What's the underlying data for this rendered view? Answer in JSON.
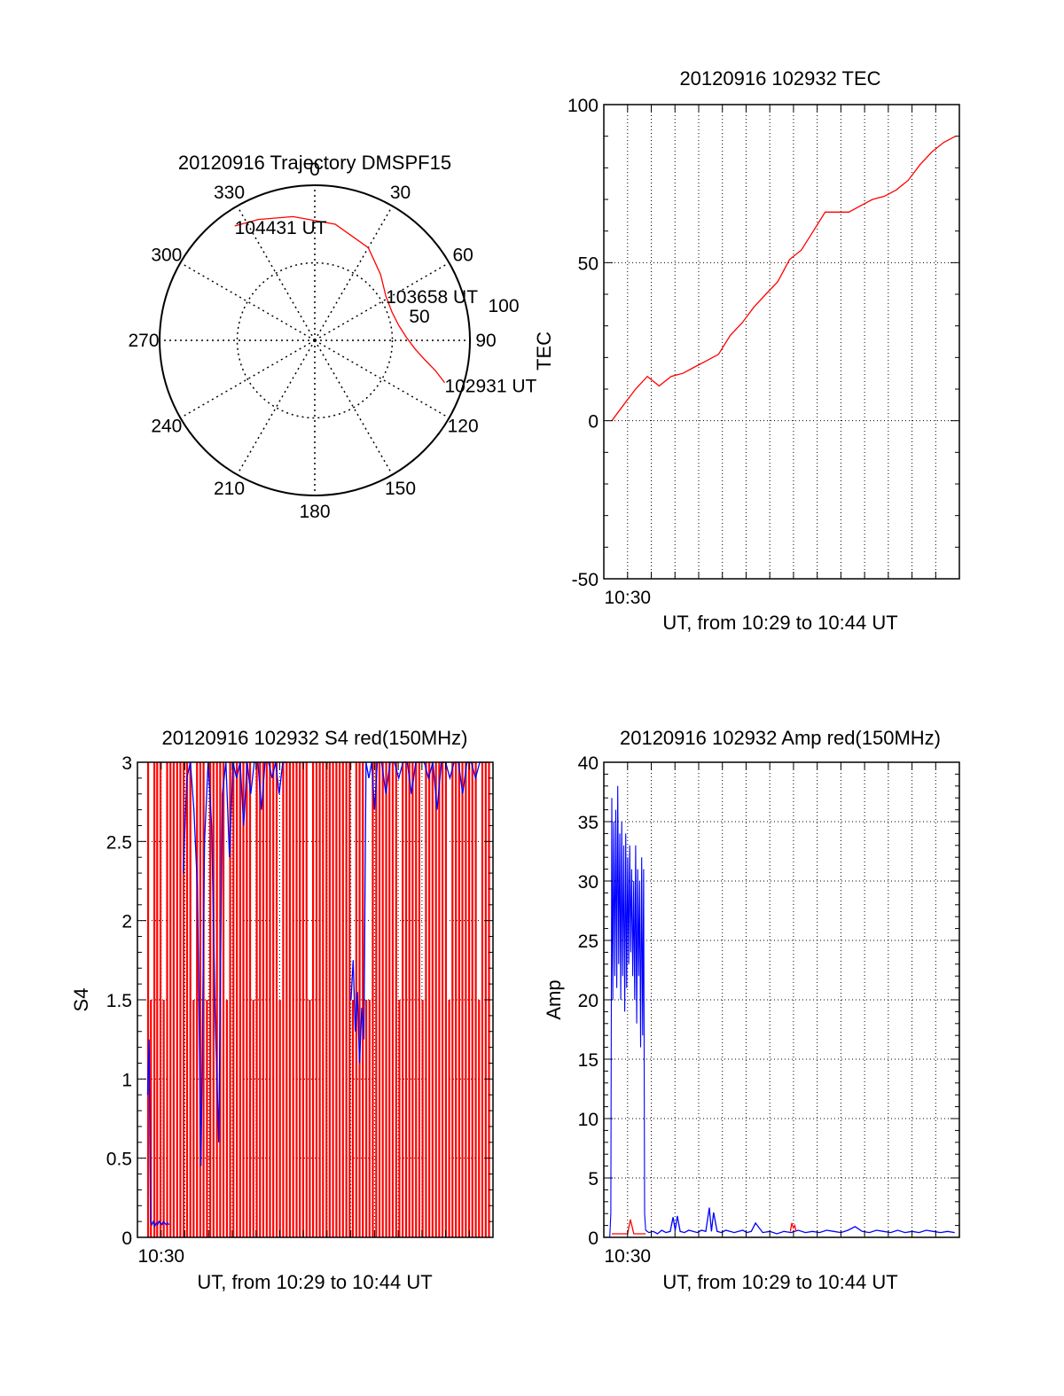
{
  "colors": {
    "red": "#ff0000",
    "blue": "#0000ff",
    "axis": "#000000",
    "grid": "#000000",
    "background": "#ffffff"
  },
  "chart_data": [
    {
      "id": "trajectory",
      "type": "polar",
      "title": "20120916 Trajectory DMSPF15",
      "angle_labels": [
        "0",
        "30",
        "60",
        "90",
        "120",
        "150",
        "180",
        "210",
        "240",
        "270",
        "300",
        "330"
      ],
      "radius_labels": [
        "50",
        "100"
      ],
      "radius_range": [
        0,
        100
      ],
      "grid": true,
      "track": {
        "color": "red",
        "points": [
          {
            "azimuth": 108,
            "radius": 88
          },
          {
            "azimuth": 104,
            "radius": 80
          },
          {
            "azimuth": 100,
            "radius": 72
          },
          {
            "azimuth": 95,
            "radius": 65
          },
          {
            "azimuth": 88,
            "radius": 59
          },
          {
            "azimuth": 80,
            "radius": 55
          },
          {
            "azimuth": 70,
            "radius": 53
          },
          {
            "azimuth": 58,
            "radius": 54
          },
          {
            "azimuth": 45,
            "radius": 60
          },
          {
            "azimuth": 30,
            "radius": 69
          },
          {
            "azimuth": 10,
            "radius": 76
          },
          {
            "azimuth": -10,
            "radius": 81
          },
          {
            "azimuth": -25,
            "radius": 86
          },
          {
            "azimuth": -35,
            "radius": 90
          }
        ]
      },
      "annotations": [
        {
          "text": "104431 UT",
          "azimuth": -35,
          "radius": 90
        },
        {
          "text": "103658 UT",
          "azimuth": 58,
          "radius": 54
        },
        {
          "text": "102931 UT",
          "azimuth": 108,
          "radius": 88
        }
      ]
    },
    {
      "id": "tec",
      "type": "line",
      "title": "20120916 102932 TEC",
      "xlabel": "UT, from 10:29 to 10:44 UT",
      "ylabel": "TEC",
      "xlim": [
        10.4833,
        10.7333
      ],
      "ylim": [
        -50,
        100
      ],
      "yticks": [
        -50,
        0,
        50,
        100
      ],
      "xticks": [
        {
          "value": 10.5,
          "label": "10:30"
        }
      ],
      "grid": true,
      "series": [
        {
          "color": "red",
          "x": [
            10.4889,
            10.4972,
            10.5056,
            10.5139,
            10.5222,
            10.5306,
            10.5389,
            10.5472,
            10.5556,
            10.5639,
            10.5722,
            10.5806,
            10.5889,
            10.5972,
            10.6056,
            10.6139,
            10.6222,
            10.6306,
            10.6389,
            10.6472,
            10.6556,
            10.6639,
            10.6722,
            10.6806,
            10.6889,
            10.6972,
            10.7056,
            10.7139,
            10.7222,
            10.7306
          ],
          "y": [
            0,
            5,
            10,
            14,
            11,
            14,
            15,
            17,
            19,
            21,
            27,
            31,
            36,
            40,
            44,
            51,
            54,
            60,
            66,
            66,
            66,
            68,
            70,
            71,
            73,
            76,
            81,
            85,
            88,
            90
          ]
        }
      ]
    },
    {
      "id": "s4",
      "type": "line",
      "title": "20120916 102932 S4 red(150MHz)",
      "xlabel": "UT, from 10:29 to 10:44 UT",
      "ylabel": "S4",
      "xlim": [
        10.4833,
        10.7333
      ],
      "ylim": [
        0,
        3
      ],
      "yticks": [
        0,
        0.5,
        1,
        1.5,
        2,
        2.5,
        3
      ],
      "ytick_labels": [
        "0",
        "0.5",
        "1",
        "1.5",
        "2",
        "2.5",
        "3"
      ],
      "xticks": [
        {
          "value": 10.5,
          "label": "10:30"
        }
      ],
      "grid": true,
      "series": [
        {
          "color": "red",
          "x": [
            10.4908,
            10.4928,
            10.4952,
            10.4972,
            10.4995,
            10.5018,
            10.5042,
            10.5065,
            10.5088,
            10.5112,
            10.5135,
            10.5158,
            10.5182,
            10.5205,
            10.5228,
            10.5252,
            10.5275,
            10.5298,
            10.5322,
            10.5345,
            10.5368,
            10.5392,
            10.5415,
            10.5438,
            10.5462,
            10.5485,
            10.5508,
            10.5532,
            10.5555,
            10.5578,
            10.5602,
            10.5625,
            10.5648,
            10.5672,
            10.5695,
            10.5718,
            10.5742,
            10.5765,
            10.5788,
            10.5812,
            10.5835,
            10.5858,
            10.5882,
            10.5905,
            10.5928,
            10.5952,
            10.5975,
            10.5998,
            10.6022,
            10.6045,
            10.6068,
            10.6092,
            10.6115,
            10.6138,
            10.6162,
            10.6185,
            10.6208,
            10.6232,
            10.6255,
            10.6278,
            10.6302,
            10.6325,
            10.6348,
            10.6372,
            10.6395,
            10.6418,
            10.6442,
            10.6465,
            10.6488,
            10.6512,
            10.6535,
            10.6558,
            10.6582,
            10.6605,
            10.6628,
            10.6652,
            10.6675,
            10.6698,
            10.6722,
            10.6745,
            10.6768,
            10.6792,
            10.6815,
            10.6838,
            10.6862,
            10.6885,
            10.6908,
            10.6932,
            10.6955,
            10.6978,
            10.7002,
            10.7025,
            10.7048,
            10.7072,
            10.7095,
            10.7118,
            10.7142,
            10.7165,
            10.7188,
            10.7212,
            10.7235,
            10.7258,
            10.7282,
            10.7305
          ],
          "y": [
            3,
            1.5,
            3,
            3,
            3,
            1.5,
            3,
            3,
            3,
            3,
            3,
            3,
            3,
            3,
            1.5,
            3,
            3,
            3,
            1.5,
            3,
            3,
            3,
            3,
            3,
            1.5,
            3,
            3,
            3,
            3,
            3,
            3,
            3,
            1.5,
            3,
            3,
            3,
            3,
            3,
            3,
            3,
            1.5,
            3,
            3,
            3,
            3,
            3,
            3,
            3,
            3,
            1.5,
            3,
            3,
            3,
            3,
            3,
            3,
            3,
            3,
            3,
            3,
            3,
            3,
            1.5,
            3,
            3,
            3,
            1.5,
            1.5,
            3,
            3,
            3,
            3,
            3,
            3,
            3,
            3,
            1.5,
            3,
            3,
            3,
            3,
            3,
            3,
            1.5,
            3,
            3,
            3,
            3,
            3,
            3,
            3,
            1.5,
            3,
            3,
            3,
            3,
            3,
            3,
            3,
            3,
            1.5,
            3,
            3,
            3
          ]
        },
        {
          "color": "blue",
          "x": [
            10.4905,
            10.4915,
            10.4925,
            10.4935,
            10.4945,
            10.4955,
            10.4965,
            10.4975,
            10.4985,
            10.4995,
            10.5005,
            10.5015,
            10.5025,
            10.5035,
            10.5045,
            10.5055
          ],
          "y": [
            0.9,
            1.25,
            0.1,
            0.08,
            0.1,
            0.07,
            0.09,
            0.08,
            0.1,
            0.09,
            0.08,
            0.1,
            0.09,
            0.08,
            0.09,
            0.08
          ]
        },
        {
          "color": "blue",
          "x": [
            10.5155,
            10.518,
            10.5205,
            10.523,
            10.5255,
            10.528,
            10.5305,
            10.533,
            10.5355,
            10.538,
            10.5405,
            10.543,
            10.5455,
            10.548,
            10.5505,
            10.553,
            10.5555,
            10.558,
            10.5605,
            10.563,
            10.5655,
            10.568,
            10.5705,
            10.573,
            10.5755,
            10.578,
            10.5805,
            10.583,
            10.5855,
            10.588
          ],
          "y": [
            2.3,
            2.9,
            3,
            2.7,
            2.2,
            0.45,
            2.5,
            3,
            2.6,
            1.4,
            0.6,
            2.8,
            3,
            2.4,
            3,
            2.9,
            3,
            2.6,
            3,
            2.8,
            3,
            3,
            2.7,
            3,
            3,
            2.9,
            3,
            2.8,
            3,
            3
          ]
        },
        {
          "color": "blue",
          "x": [
            10.6335,
            10.635,
            10.6365,
            10.638,
            10.6395,
            10.641,
            10.6425,
            10.644,
            10.646,
            10.648,
            10.65,
            10.652,
            10.655,
            10.658,
            10.661,
            10.664,
            10.667,
            10.67,
            10.673,
            10.676,
            10.679,
            10.682,
            10.685,
            10.688,
            10.691,
            10.694,
            10.697,
            10.7,
            10.703,
            10.706,
            10.709,
            10.712,
            10.715,
            10.718,
            10.721,
            10.724,
            10.727,
            10.73
          ],
          "y": [
            1.5,
            1.75,
            1.3,
            1.55,
            1.1,
            1.45,
            1.25,
            3,
            2.9,
            3,
            2.7,
            3,
            3,
            2.8,
            3,
            3,
            2.9,
            3,
            3,
            2.8,
            3,
            3,
            3,
            2.9,
            3,
            2.7,
            3,
            3,
            2.9,
            3,
            3,
            2.8,
            3,
            3,
            2.9,
            3,
            3,
            3
          ]
        }
      ]
    },
    {
      "id": "amp",
      "type": "line",
      "title": "20120916 102932 Amp red(150MHz)",
      "xlabel": "UT, from 10:29 to 10:44 UT",
      "ylabel": "Amp",
      "xlim": [
        10.4833,
        10.7333
      ],
      "ylim": [
        0,
        40
      ],
      "yticks": [
        0,
        5,
        10,
        15,
        20,
        25,
        30,
        35,
        40
      ],
      "xticks": [
        {
          "value": 10.5,
          "label": "10:30"
        }
      ],
      "grid": true,
      "series": [
        {
          "color": "blue",
          "x": [
            10.4875,
            10.4882,
            10.4889,
            10.4896,
            10.4903,
            10.491,
            10.4917,
            10.4924,
            10.4931,
            10.4938,
            10.4945,
            10.4952,
            10.4959,
            10.4966,
            10.4973,
            10.498,
            10.4987,
            10.4994,
            10.5001,
            10.5008,
            10.5015,
            10.5022,
            10.5029,
            10.5036,
            10.5043,
            10.505,
            10.5057,
            10.5064,
            10.5071,
            10.5078,
            10.5085,
            10.5092,
            10.5099,
            10.5106,
            10.5113,
            10.512,
            10.5127
          ],
          "y": [
            0,
            2,
            37,
            20,
            35,
            22,
            36,
            21,
            38,
            23,
            34,
            20,
            35,
            22,
            33,
            19,
            34,
            21,
            32,
            23,
            33,
            24,
            31,
            22,
            30,
            20,
            33,
            18,
            31,
            22,
            30,
            16,
            32,
            17,
            31,
            2,
            0.6
          ]
        },
        {
          "color": "blue",
          "x": [
            10.5127,
            10.515,
            10.518,
            10.521,
            10.524,
            10.527,
            10.53,
            10.532,
            10.5335,
            10.535,
            10.537,
            10.54,
            10.543,
            10.546,
            10.549,
            10.552,
            10.555,
            10.5575,
            10.559,
            10.5605,
            10.563,
            10.566,
            10.569,
            10.572,
            10.575,
            10.578,
            10.581,
            10.584,
            10.587,
            10.59,
            10.595,
            10.6,
            10.605,
            10.61,
            10.615,
            10.62,
            10.625,
            10.63,
            10.635,
            10.64,
            10.645,
            10.65,
            10.655,
            10.66,
            10.665,
            10.67,
            10.675,
            10.68,
            10.685,
            10.69,
            10.695,
            10.7,
            10.705,
            10.71,
            10.715,
            10.72,
            10.725,
            10.73
          ],
          "y": [
            0.6,
            0.4,
            0.5,
            0.3,
            0.6,
            0.4,
            0.5,
            1.7,
            0.6,
            1.8,
            0.5,
            0.4,
            0.6,
            0.5,
            0.4,
            0.6,
            0.5,
            2.5,
            0.5,
            2.1,
            0.5,
            0.4,
            0.6,
            0.5,
            0.4,
            0.5,
            0.6,
            0.4,
            0.5,
            1.2,
            0.4,
            0.5,
            0.3,
            0.5,
            0.4,
            0.6,
            0.4,
            0.5,
            0.4,
            0.6,
            0.5,
            0.4,
            0.6,
            0.9,
            0.5,
            0.4,
            0.6,
            0.5,
            0.4,
            0.6,
            0.4,
            0.5,
            0.4,
            0.6,
            0.5,
            0.4,
            0.5,
            0.4
          ]
        },
        {
          "color": "red",
          "x": [
            10.4889,
            10.495,
            10.5,
            10.502,
            10.5044,
            10.51,
            10.5127
          ],
          "y": [
            0.3,
            0.3,
            0.3,
            1.5,
            0.3,
            0.3,
            0.3
          ]
        },
        {
          "color": "red",
          "x": [
            10.6145,
            10.6155,
            10.6165,
            10.6175,
            10.6185
          ],
          "y": [
            0.5,
            1.2,
            0.8,
            1,
            0.5
          ]
        }
      ]
    }
  ]
}
